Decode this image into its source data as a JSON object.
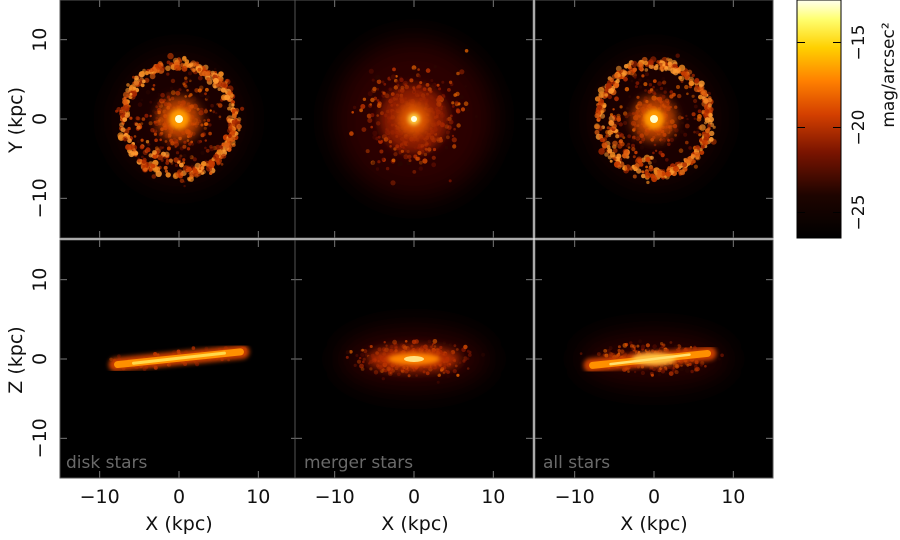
{
  "chart_data": {
    "type": "heatmap",
    "layout": "2 rows x 3 columns",
    "colormap": "black-red-orange-yellow-white",
    "x_range": [
      -15,
      15
    ],
    "y_range": [
      -15,
      15
    ],
    "x_ticks": [
      -10,
      0,
      10
    ],
    "y_ticks": [
      10,
      0,
      -10
    ],
    "x_tick_labels": [
      "−10",
      "0",
      "10"
    ],
    "y_tick_labels": [
      "10",
      "0",
      "−10"
    ],
    "xlabel": "X (kpc)",
    "row_ylabels": [
      "Y (kpc)",
      "Z (kpc)"
    ],
    "panels": [
      {
        "row": 0,
        "col": 0,
        "label": "",
        "structure": "face-on disk with bright core and ring",
        "ring_radius_kpc": 7.5
      },
      {
        "row": 0,
        "col": 1,
        "label": "",
        "structure": "face-on spheroidal concentration",
        "ring_radius_kpc": 0
      },
      {
        "row": 0,
        "col": 2,
        "label": "",
        "structure": "face-on disk with bright core and ring",
        "ring_radius_kpc": 7.5
      },
      {
        "row": 1,
        "col": 0,
        "label": "disk stars",
        "structure": "edge-on thin tilted disk",
        "disk_x_range_kpc": [
          -8,
          8
        ],
        "tilt_kpc": [
          -0.7,
          0.9
        ]
      },
      {
        "row": 1,
        "col": 1,
        "label": "merger stars",
        "structure": "edge-on thick bulge-like distribution",
        "disk_x_range_kpc": [
          -6,
          6
        ],
        "tilt_kpc": [
          0,
          0
        ]
      },
      {
        "row": 1,
        "col": 2,
        "label": "all stars",
        "structure": "edge-on thin tilted disk plus diffuse halo",
        "disk_x_range_kpc": [
          -8,
          7
        ],
        "tilt_kpc": [
          -0.8,
          0.7
        ]
      }
    ],
    "colorbar": {
      "label": "mag/arcsec²",
      "range": [
        -26.5,
        -12.5
      ],
      "ticks": [
        -15,
        -20,
        -25
      ],
      "tick_labels": [
        "−15",
        "−20",
        "−25"
      ]
    }
  }
}
